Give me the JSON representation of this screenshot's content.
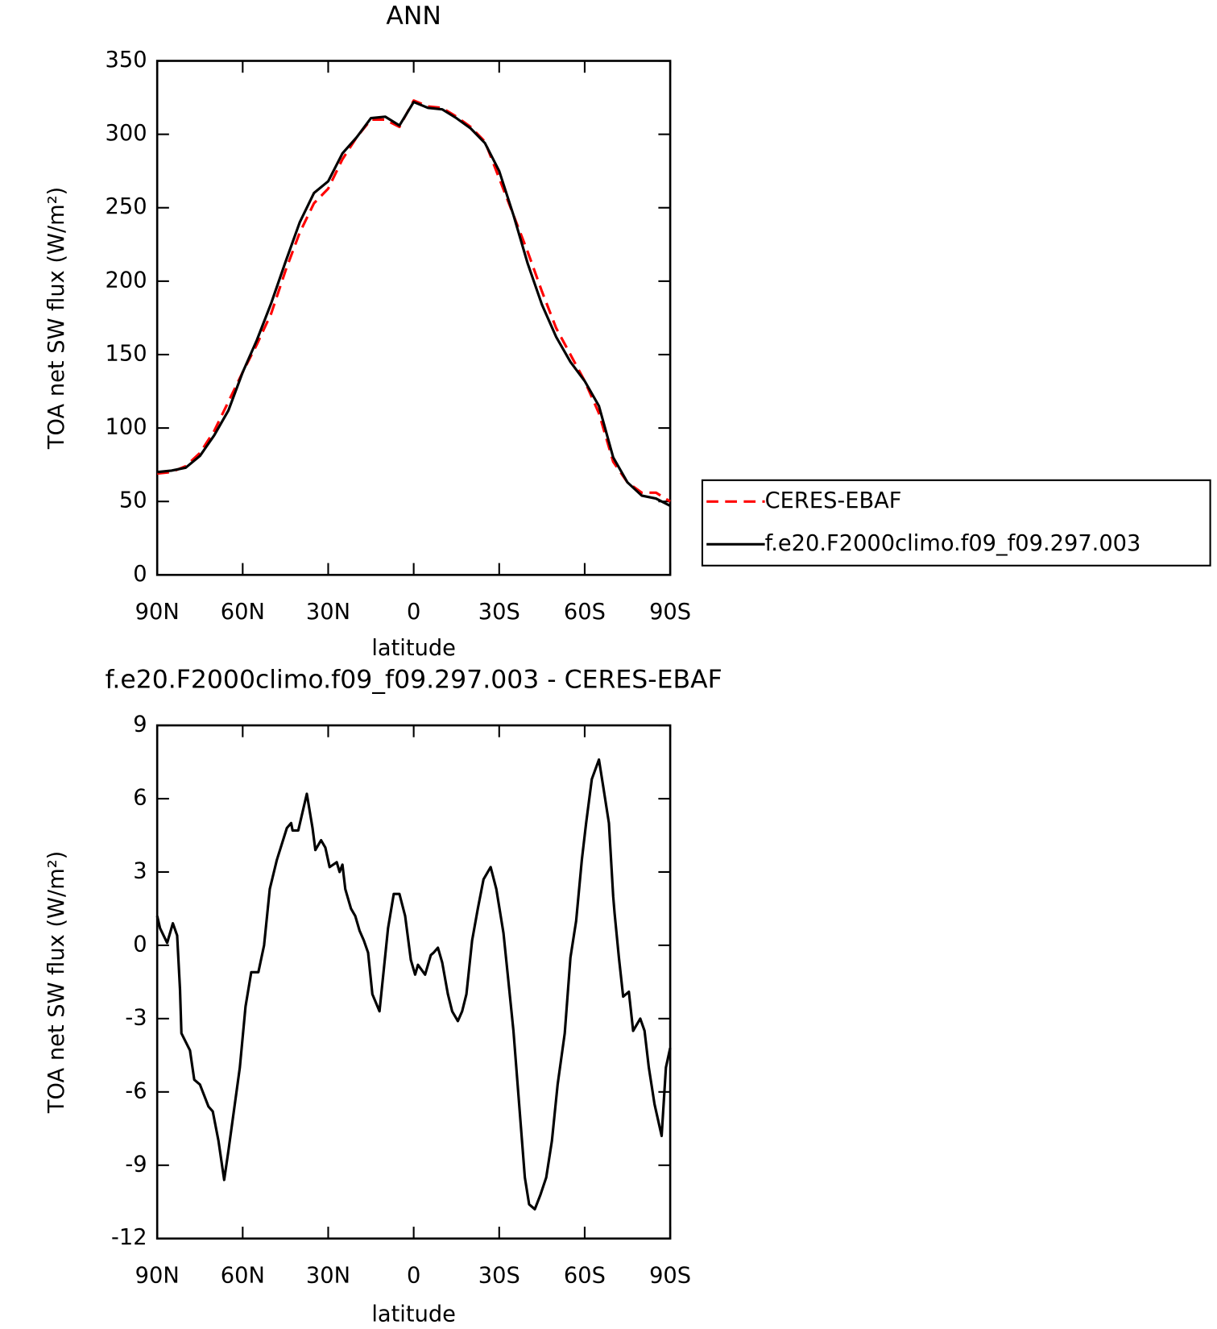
{
  "chart_data": [
    {
      "type": "line",
      "title": "ANN",
      "xlabel": "latitude",
      "ylabel": "TOA net SW flux (W/m²)",
      "x": [
        90,
        85,
        80,
        75,
        70,
        65,
        60,
        55,
        50,
        45,
        40,
        35,
        30,
        25,
        20,
        15,
        10,
        5,
        0,
        -5,
        -10,
        -15,
        -20,
        -25,
        -30,
        -35,
        -40,
        -45,
        -50,
        -55,
        -60,
        -65,
        -70,
        -75,
        -80,
        -85,
        -90
      ],
      "xlim": [
        90,
        -90
      ],
      "xticks": [
        {
          "value": 90,
          "label": "90N"
        },
        {
          "value": 60,
          "label": "60N"
        },
        {
          "value": 30,
          "label": "30N"
        },
        0,
        {
          "value": -30,
          "label": "30S"
        },
        {
          "value": -60,
          "label": "60S"
        },
        {
          "value": -90,
          "label": "90S"
        }
      ],
      "ylim": [
        0,
        350
      ],
      "yticks": [
        0,
        50,
        100,
        150,
        200,
        250,
        300,
        350
      ],
      "legend": "outside right",
      "series": [
        {
          "name": "CERES-EBAF",
          "color": "#ff0000",
          "linestyle": "dashed",
          "values": [
            69,
            70,
            74,
            83,
            98,
            118,
            138,
            157,
            178,
            207,
            233,
            253,
            263,
            283,
            298,
            310,
            310,
            305,
            323,
            319,
            318,
            312,
            305,
            295,
            270,
            245,
            220,
            193,
            168,
            150,
            132,
            110,
            77,
            63,
            56,
            56,
            50
          ]
        },
        {
          "name": "f.e20.F2000climo.f09_f09.297.003",
          "color": "#000000",
          "linestyle": "solid",
          "values": [
            70,
            71,
            73,
            81,
            95,
            112,
            138,
            160,
            185,
            213,
            240,
            260,
            268,
            287,
            298,
            311,
            312,
            306,
            322,
            318,
            317,
            311,
            304,
            294,
            275,
            245,
            212,
            184,
            162,
            145,
            132,
            115,
            80,
            63,
            54,
            52,
            47
          ]
        }
      ]
    },
    {
      "type": "line",
      "title": "f.e20.F2000climo.f09_f09.297.003 - CERES-EBAF",
      "xlabel": "latitude",
      "ylabel": "TOA net SW flux (W/m²)",
      "x": [
        90,
        89,
        86.5,
        84.5,
        83,
        82,
        81.5,
        78.5,
        77,
        75,
        72,
        70.5,
        68.5,
        66.5,
        65,
        61,
        59,
        57,
        54.5,
        52.5,
        50.5,
        48,
        44.5,
        43,
        42.5,
        40.5,
        37.5,
        35.5,
        34.5,
        32.5,
        31,
        29.5,
        27,
        26,
        25,
        24,
        22,
        20.5,
        19,
        17.5,
        16,
        14.5,
        12,
        10.5,
        9,
        7,
        5,
        3,
        1,
        -0.5,
        -1.5,
        -4,
        -6,
        -7,
        -8.5,
        -10,
        -12,
        -13.5,
        -15.5,
        -17,
        -18.5,
        -20.5,
        -22.5,
        -24.5,
        -27,
        -29,
        -31.5,
        -33,
        -35,
        -37,
        -39,
        -40.5,
        -42.5,
        -44.5,
        -46.5,
        -48.5,
        -50.5,
        -53,
        -55,
        -57,
        -59,
        -60.5,
        -62.5,
        -65,
        -66.5,
        -68.5,
        -70,
        -70.5,
        -72,
        -73.5,
        -75.5,
        -77,
        -79.5,
        -81,
        -82.5,
        -84.5,
        -87,
        -88.5,
        -90
      ],
      "xlim": [
        90,
        -90
      ],
      "xticks": [
        {
          "value": 90,
          "label": "90N"
        },
        {
          "value": 60,
          "label": "60N"
        },
        {
          "value": 30,
          "label": "30N"
        },
        0,
        {
          "value": -30,
          "label": "30S"
        },
        {
          "value": -60,
          "label": "60S"
        },
        {
          "value": -90,
          "label": "90S"
        }
      ],
      "ylim": [
        -12,
        9
      ],
      "yticks": [
        -12,
        -9,
        -6,
        -3,
        0,
        3,
        6,
        9
      ],
      "series": [
        {
          "color": "#000000",
          "linestyle": "solid",
          "values": [
            1.2,
            0.7,
            0.1,
            0.9,
            0.4,
            -1.8,
            -3.6,
            -4.3,
            -5.5,
            -5.7,
            -6.6,
            -6.8,
            -8,
            -9.6,
            -8.4,
            -5,
            -2.5,
            -1.1,
            -1.1,
            0,
            2.3,
            3.5,
            4.8,
            5,
            4.7,
            4.7,
            6.2,
            4.8,
            3.9,
            4.3,
            4,
            3.2,
            3.4,
            3,
            3.3,
            2.3,
            1.5,
            1.2,
            0.6,
            0.2,
            -0.3,
            -2,
            -2.7,
            -1,
            0.7,
            2.1,
            2.1,
            1.2,
            -0.6,
            -1.2,
            -0.8,
            -1.2,
            -0.4,
            -0.3,
            -0.1,
            -0.7,
            -2,
            -2.7,
            -3.1,
            -2.7,
            -2,
            0.2,
            1.5,
            2.7,
            3.2,
            2.3,
            0.5,
            -1.2,
            -3.5,
            -6.5,
            -9.5,
            -10.6,
            -10.8,
            -10.2,
            -9.5,
            -8,
            -5.7,
            -3.6,
            -0.5,
            1,
            3.5,
            5,
            6.8,
            7.6,
            6.5,
            5,
            2,
            1.3,
            -0.5,
            -2.1,
            -1.9,
            -3.5,
            -3,
            -3.5,
            -5,
            -6.5,
            -7.8,
            -5,
            -4.2
          ]
        }
      ]
    }
  ]
}
